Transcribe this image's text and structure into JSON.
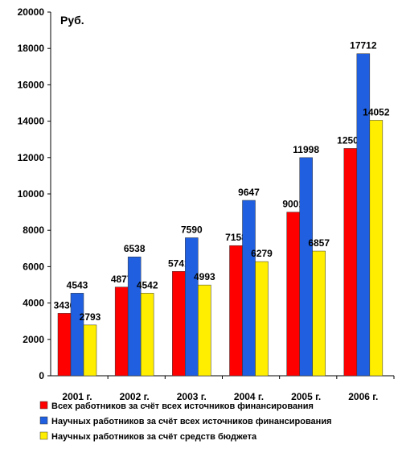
{
  "chart_data": {
    "type": "bar",
    "unit_label": "Руб.",
    "categories": [
      "2001 г.",
      "2002 г.",
      "2003 г.",
      "2004 г.",
      "2005 г.",
      "2006 г."
    ],
    "series": [
      {
        "name": "Всех работников за счёт всех источников финансирования",
        "color": "#ff0000",
        "values": [
          3436,
          4877,
          5741,
          7158,
          9001,
          12503
        ]
      },
      {
        "name": "Научных работников за счёт всех источников финансирования",
        "color": "#1f5fe0",
        "values": [
          4543,
          6538,
          7590,
          9647,
          11998,
          17712
        ]
      },
      {
        "name": "Научных работников за счёт средств бюджета",
        "color": "#ffee00",
        "values": [
          2793,
          4542,
          4993,
          6279,
          6857,
          14052
        ]
      }
    ],
    "ylim": [
      0,
      20000
    ],
    "yticks": [
      0,
      2000,
      4000,
      6000,
      8000,
      10000,
      12000,
      14000,
      16000,
      18000,
      20000
    ],
    "legend_position": "bottom",
    "grid": false
  }
}
